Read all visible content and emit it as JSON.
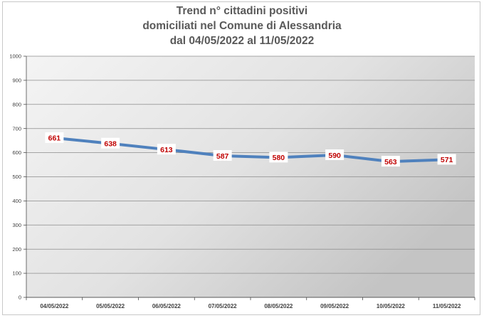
{
  "chart_data": {
    "type": "line",
    "title_lines": [
      "Trend n° cittadini positivi",
      "domiciliati nel Comune di Alessandria",
      "dal 04/05/2022 al 11/05/2022"
    ],
    "categories": [
      "04/05/2022",
      "05/05/2022",
      "06/05/2022",
      "07/05/2022",
      "08/05/2022",
      "09/05/2022",
      "10/05/2022",
      "11/05/2022"
    ],
    "series": [
      {
        "values": [
          661,
          638,
          613,
          587,
          580,
          590,
          563,
          571
        ]
      }
    ],
    "ylim": [
      0,
      1000
    ],
    "yticks": [
      0,
      100,
      200,
      300,
      400,
      500,
      600,
      700,
      800,
      900,
      1000
    ],
    "grid": true,
    "data_labels": true,
    "colors": {
      "line": "#4f81bd",
      "label": "#c00000",
      "plot_bg_light": "#f4f4f4",
      "plot_bg_dark": "#c4c4c4",
      "grid": "#8c8c8c"
    }
  }
}
